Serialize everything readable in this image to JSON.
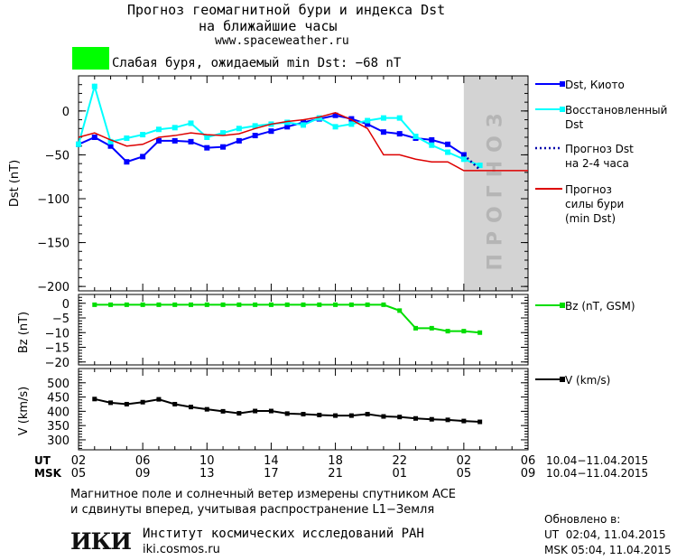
{
  "header": {
    "title_line1": "Прогноз геомагнитной бури и индекса Dst",
    "title_line2": "на ближайшие часы",
    "site": "www.spaceweather.ru",
    "status_color": "#00ff00",
    "status_text": "Слабая буря, ожидаемый min Dst: −68 nT"
  },
  "footer": {
    "note_line1": "Магнитное поле и солнечный ветер измерены спутником ACE",
    "note_line2": "и сдвинуты вперед, учитывая распространение L1−Земля",
    "institute": "Институт космических исследований РАН",
    "institute_site": "iki.cosmos.ru",
    "logo_text": "ИКИ",
    "updated_label": "Обновлено в:",
    "updated_ut": "UT  02:04, 11.04.2015",
    "updated_msk": "MSK 05:04, 11.04.2015"
  },
  "time_axis": {
    "ut_label": "UT",
    "msk_label": "MSK",
    "ut_ticks": [
      "02",
      "06",
      "10",
      "14",
      "18",
      "22",
      "02",
      "06"
    ],
    "msk_ticks": [
      "05",
      "09",
      "13",
      "17",
      "21",
      "01",
      "05",
      "09"
    ],
    "date_range_ut": "10.04−11.04.2015",
    "date_range_msk": "10.04−11.04.2015"
  },
  "chart_data": [
    {
      "type": "line",
      "ylabel": "Dst (nT)",
      "ylim": [
        -205,
        40
      ],
      "yticks": [
        0,
        -50,
        -100,
        -150,
        -200
      ],
      "ytick_labels": [
        "0",
        "−50",
        "−100",
        "−150",
        "−200"
      ],
      "xlim_hours": [
        0,
        28
      ],
      "forecast_band": {
        "from_hour": 24,
        "to_hour": 28,
        "label": "ПРОГНОЗ",
        "color": "#d3d3d3"
      },
      "series": [
        {
          "name": "Dst, Киото",
          "color": "#0000ff",
          "x": [
            0,
            1,
            2,
            3,
            4,
            5,
            6,
            7,
            8,
            9,
            10,
            11,
            12,
            13,
            14,
            15,
            16,
            17,
            18,
            19,
            20,
            21,
            22,
            23,
            24
          ],
          "y": [
            -38,
            -30,
            -40,
            -58,
            -52,
            -34,
            -34,
            -35,
            -42,
            -41,
            -34,
            -28,
            -23,
            -18,
            -13,
            -9,
            -5,
            -9,
            -15,
            -24,
            -26,
            -31,
            -33,
            -38,
            -50
          ]
        },
        {
          "name": "Восстановленный Dst",
          "color": "#00ffff",
          "x": [
            0,
            1,
            2,
            3,
            4,
            5,
            6,
            7,
            8,
            9,
            10,
            11,
            12,
            13,
            14,
            15,
            16,
            17,
            18,
            19,
            20,
            21,
            22,
            23,
            24,
            25
          ],
          "y": [
            -38,
            28,
            -35,
            -31,
            -27,
            -21,
            -19,
            -14,
            -30,
            -25,
            -20,
            -17,
            -15,
            -13,
            -16,
            -8,
            -18,
            -15,
            -11,
            -8,
            -8,
            -29,
            -39,
            -47,
            -55,
            -62
          ]
        },
        {
          "name": "Прогноз Dst на 2-4 часа",
          "color": "#0000aa",
          "x": [
            24,
            25
          ],
          "y": [
            -50,
            -67
          ]
        },
        {
          "name": "Прогноз силы бури (min Dst)",
          "color": "#dd0000",
          "x": [
            0,
            1,
            2,
            3,
            4,
            5,
            6,
            7,
            8,
            9,
            10,
            11,
            12,
            13,
            14,
            15,
            16,
            17,
            18,
            19,
            20,
            21,
            22,
            23,
            24,
            25,
            26,
            27,
            28
          ],
          "y": [
            -30,
            -25,
            -33,
            -40,
            -38,
            -30,
            -28,
            -25,
            -27,
            -28,
            -26,
            -20,
            -15,
            -12,
            -10,
            -7,
            -2,
            -10,
            -20,
            -50,
            -50,
            -55,
            -58,
            -58,
            -68,
            -68,
            -68,
            -68,
            -68
          ]
        }
      ],
      "legend": [
        {
          "label": "Dst, Киото",
          "style": "solid-marker",
          "color": "#0000ff"
        },
        {
          "label": "Восстановленный Dst",
          "style": "solid-marker",
          "color": "#00ffff"
        },
        {
          "label": "Прогноз Dst на 2-4 часа",
          "style": "dotted",
          "color": "#0000aa"
        },
        {
          "label": "Прогноз силы бури (min Dst)",
          "style": "solid",
          "color": "#dd0000"
        }
      ]
    },
    {
      "type": "line",
      "ylabel": "Bz (nT)",
      "ylim": [
        -21,
        3
      ],
      "yticks": [
        0,
        -5,
        -10,
        -15,
        -20
      ],
      "ytick_labels": [
        "0",
        "−5",
        "−10",
        "−15",
        "−20"
      ],
      "xlim_hours": [
        0,
        28
      ],
      "series": [
        {
          "name": "Bz (nT, GSM)",
          "color": "#00dd00",
          "x": [
            1,
            2,
            3,
            4,
            5,
            6,
            7,
            8,
            9,
            10,
            11,
            12,
            13,
            14,
            15,
            16,
            17,
            18,
            19,
            20,
            21,
            22,
            23,
            24,
            25
          ],
          "y": [
            -0.5,
            -0.5,
            -0.5,
            -0.5,
            -0.5,
            -0.5,
            -0.5,
            -0.5,
            -0.5,
            -0.5,
            -0.5,
            -0.5,
            -0.5,
            -0.5,
            -0.5,
            -0.5,
            -0.5,
            -0.5,
            -0.5,
            -2.5,
            -8.5,
            -8.5,
            -9.5,
            -9.5,
            -10
          ]
        }
      ],
      "legend": [
        {
          "label": "Bz (nT, GSM)",
          "color": "#00dd00"
        }
      ]
    },
    {
      "type": "line",
      "ylabel": "V (km/s)",
      "ylim": [
        265,
        550
      ],
      "yticks": [
        500,
        450,
        400,
        350,
        300
      ],
      "ytick_labels": [
        "500",
        "450",
        "400",
        "350",
        "300"
      ],
      "xlim_hours": [
        0,
        28
      ],
      "series": [
        {
          "name": "V (km/s)",
          "color": "#000000",
          "x": [
            1,
            2,
            3,
            4,
            5,
            6,
            7,
            8,
            9,
            10,
            11,
            12,
            13,
            14,
            15,
            16,
            17,
            18,
            19,
            20,
            21,
            22,
            23,
            24,
            25
          ],
          "y": [
            443,
            430,
            425,
            432,
            442,
            425,
            415,
            407,
            400,
            393,
            401,
            401,
            392,
            390,
            387,
            385,
            385,
            390,
            382,
            380,
            375,
            372,
            370,
            366,
            363
          ]
        }
      ],
      "legend": [
        {
          "label": "V (km/s)",
          "color": "#000000"
        }
      ]
    }
  ]
}
